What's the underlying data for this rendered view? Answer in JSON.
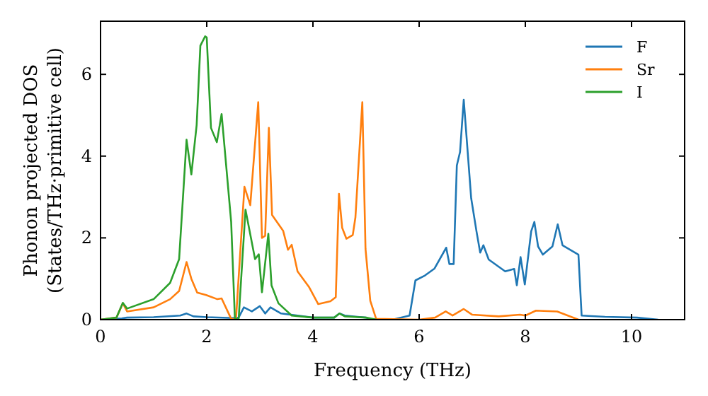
{
  "chart_data": {
    "type": "line",
    "xlabel": "Frequency (THz)",
    "ylabel": "Phonon projected DOS\n(States/THz·primitive cell)",
    "xlim": [
      0,
      11
    ],
    "ylim": [
      0,
      7.3
    ],
    "xticks": [
      0,
      2,
      4,
      6,
      8,
      10
    ],
    "yticks": [
      0,
      2,
      4,
      6
    ],
    "legend": "top right",
    "grid": false,
    "series": [
      {
        "name": "F",
        "color": "#1f77b4",
        "x": [
          0,
          0.4,
          0.5,
          1.0,
          1.5,
          1.62,
          1.75,
          2.0,
          2.5,
          2.6,
          2.7,
          2.85,
          3.0,
          3.1,
          3.2,
          3.4,
          4.0,
          4.4,
          4.5,
          4.6,
          5.0,
          5.1,
          5.5,
          5.82,
          5.93,
          6.11,
          6.29,
          6.51,
          6.57,
          6.65,
          6.71,
          6.77,
          6.84,
          6.98,
          7.08,
          7.15,
          7.21,
          7.31,
          7.62,
          7.79,
          7.84,
          7.91,
          7.99,
          8.11,
          8.17,
          8.24,
          8.33,
          8.51,
          8.61,
          8.7,
          9.0,
          9.06,
          9.5,
          10.1,
          10.5
        ],
        "values": [
          0,
          0.03,
          0.05,
          0.06,
          0.1,
          0.15,
          0.08,
          0.06,
          0.04,
          0.05,
          0.3,
          0.2,
          0.33,
          0.15,
          0.3,
          0.15,
          0.05,
          0.05,
          0.15,
          0.1,
          0.05,
          0,
          0,
          0.1,
          0.96,
          1.08,
          1.25,
          1.76,
          1.36,
          1.36,
          3.77,
          4.1,
          5.38,
          2.97,
          2.16,
          1.64,
          1.82,
          1.47,
          1.18,
          1.24,
          0.84,
          1.53,
          0.86,
          2.16,
          2.39,
          1.79,
          1.59,
          1.79,
          2.33,
          1.82,
          1.59,
          0.1,
          0.07,
          0.05,
          0
        ]
      },
      {
        "name": "Sr",
        "color": "#ff7f0e",
        "x": [
          0,
          0.3,
          0.42,
          0.5,
          1.0,
          1.31,
          1.48,
          1.62,
          1.71,
          1.82,
          1.99,
          2.2,
          2.28,
          2.46,
          2.55,
          2.71,
          2.82,
          2.97,
          3.04,
          3.1,
          3.17,
          3.23,
          3.44,
          3.53,
          3.6,
          3.71,
          3.93,
          4.1,
          4.33,
          4.43,
          4.49,
          4.55,
          4.63,
          4.75,
          4.8,
          4.93,
          4.99,
          5.08,
          5.19,
          6.0,
          6.3,
          6.5,
          6.63,
          6.84,
          7.0,
          7.5,
          7.9,
          8.0,
          8.2,
          8.6,
          8.8,
          9.0
        ],
        "values": [
          0,
          0.05,
          0.4,
          0.2,
          0.3,
          0.5,
          0.7,
          1.41,
          1.0,
          0.66,
          0.6,
          0.5,
          0.52,
          0.02,
          0,
          3.25,
          2.8,
          5.32,
          2.0,
          2.05,
          4.69,
          2.56,
          2.17,
          1.71,
          1.83,
          1.18,
          0.79,
          0.38,
          0.45,
          0.55,
          3.08,
          2.25,
          1.98,
          2.07,
          2.5,
          5.32,
          1.73,
          0.46,
          0.02,
          0,
          0.05,
          0.2,
          0.1,
          0.26,
          0.12,
          0.08,
          0.12,
          0.1,
          0.22,
          0.2,
          0.1,
          0
        ]
      },
      {
        "name": "I",
        "color": "#2ca02c",
        "x": [
          0,
          0.3,
          0.42,
          0.5,
          1.0,
          1.31,
          1.48,
          1.62,
          1.71,
          1.81,
          1.88,
          1.97,
          2.0,
          2.08,
          2.19,
          2.28,
          2.46,
          2.53,
          2.6,
          2.73,
          2.91,
          2.98,
          3.04,
          3.16,
          3.22,
          3.35,
          3.6,
          4.0,
          4.4,
          4.5,
          4.6,
          5.0,
          5.2
        ],
        "values": [
          0,
          0.05,
          0.41,
          0.27,
          0.5,
          0.9,
          1.48,
          4.4,
          3.55,
          4.76,
          6.7,
          6.93,
          6.9,
          4.69,
          4.34,
          5.03,
          2.39,
          0.03,
          0,
          2.69,
          1.48,
          1.6,
          0.67,
          2.1,
          0.84,
          0.4,
          0.1,
          0.05,
          0.05,
          0.15,
          0.08,
          0.05,
          0
        ]
      }
    ]
  }
}
